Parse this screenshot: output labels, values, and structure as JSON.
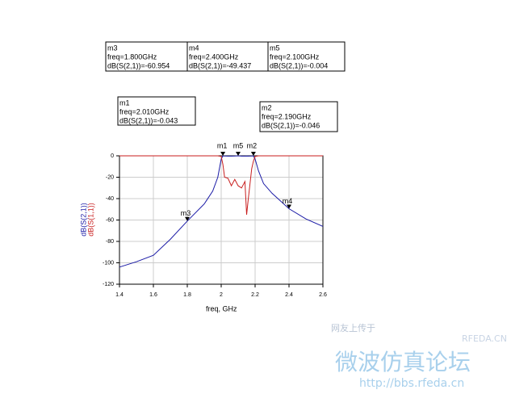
{
  "chart_data": {
    "type": "line",
    "xlabel": "freq, GHz",
    "x": [
      1.4,
      1.5,
      1.6,
      1.7,
      1.8,
      1.9,
      1.95,
      1.98,
      2.0,
      2.01,
      2.02,
      2.04,
      2.06,
      2.08,
      2.1,
      2.12,
      2.14,
      2.15,
      2.16,
      2.18,
      2.19,
      2.2,
      2.22,
      2.25,
      2.3,
      2.4,
      2.5,
      2.6
    ],
    "series": [
      {
        "name": "dB(S(2,1))",
        "color": "#1a1aa6",
        "values": [
          -104,
          -99,
          -93,
          -78,
          -60.954,
          -45,
          -33,
          -20,
          -3,
          -0.043,
          -0.2,
          -0.3,
          -0.3,
          -0.2,
          -0.004,
          -0.3,
          -0.3,
          -0.2,
          -0.3,
          -0.2,
          -0.046,
          -3,
          -14,
          -26,
          -35,
          -49.437,
          -59,
          -66
        ]
      },
      {
        "name": "dB(S(1,1))",
        "color": "#c81e1e",
        "values": [
          0,
          0,
          0,
          0,
          0,
          0,
          0,
          0,
          -0.5,
          -8,
          -20,
          -21,
          -28,
          -22,
          -28,
          -30,
          -24,
          -55,
          -40,
          -12,
          -5,
          -0.5,
          0,
          0,
          0,
          0,
          0,
          0
        ]
      }
    ],
    "xlim": [
      1.4,
      2.6
    ],
    "xticks": [
      1.4,
      1.6,
      1.8,
      2.0,
      2.2,
      2.4,
      2.6
    ],
    "ylim": [
      -120,
      0
    ],
    "yticks": [
      0,
      -20,
      -40,
      -60,
      -80,
      -100,
      -120
    ],
    "grid": true,
    "markers": [
      {
        "name": "m3",
        "freq": "freq=1.800GHz",
        "reading": "dB(S(2,1))=-60.954",
        "x": 1.8,
        "y": -60.954
      },
      {
        "name": "m4",
        "freq": "freq=2.400GHz",
        "reading": "dB(S(2,1))=-49.437",
        "x": 2.4,
        "y": -49.437
      },
      {
        "name": "m5",
        "freq": "freq=2.100GHz",
        "reading": "dB(S(2,1))=-0.004",
        "x": 2.1,
        "y": -0.004
      },
      {
        "name": "m1",
        "freq": "freq=2.010GHz",
        "reading": "dB(S(2,1))=-0.043",
        "x": 2.01,
        "y": -0.043
      },
      {
        "name": "m2",
        "freq": "freq=2.190GHz",
        "reading": "dB(S(2,1))=-0.046",
        "x": 2.19,
        "y": -0.046
      }
    ]
  },
  "watermark": {
    "upload": "网友上传于",
    "brand": "RFEDA.CN",
    "forum": "微波仿真论坛",
    "url": "http://bbs.rfeda.cn"
  }
}
